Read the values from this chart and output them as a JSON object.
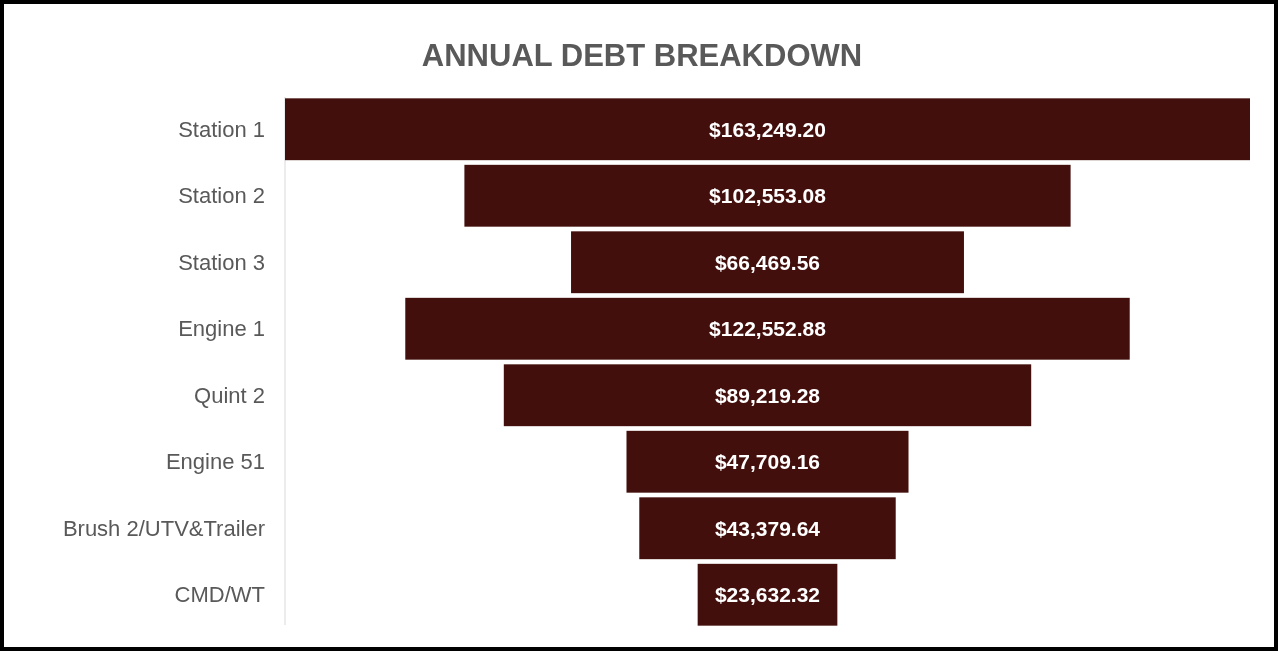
{
  "chart_data": {
    "type": "other",
    "title": "ANNUAL DEBT BREAKDOWN",
    "categories": [
      "Station 1",
      "Station 2",
      "Station 3",
      "Engine 1",
      "Quint 2",
      "Engine 51",
      "Brush 2/UTV&Trailer",
      "CMD/WT"
    ],
    "values": [
      163249.2,
      102553.08,
      66469.56,
      122552.88,
      89219.28,
      47709.16,
      43379.64,
      23632.32
    ],
    "value_labels": [
      "$163,249.20",
      "$102,553.08",
      "$66,469.56",
      "$122,552.88",
      "$89,219.28",
      "$47,709.16",
      "$43,379.64",
      "$23,632.32"
    ],
    "color": "#420f0c"
  }
}
